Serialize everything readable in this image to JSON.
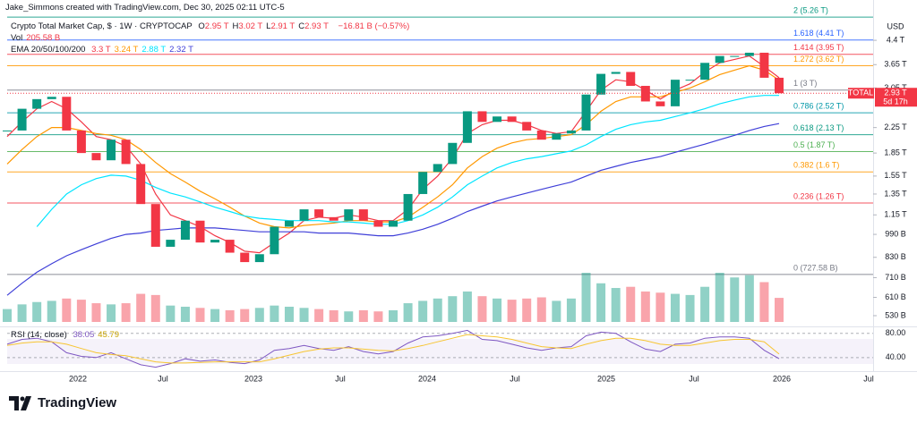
{
  "header": {
    "credit": "Jake_Simmons created with TradingView.com, Dec 30, 2025 02:11 UTC-5",
    "symbol": "Crypto Total Market Cap, $ · 1W · CRYPTOCAP",
    "ohlc": [
      {
        "key": "O",
        "value": "2.95 T"
      },
      {
        "key": "H",
        "value": "3.02 T"
      },
      {
        "key": "L",
        "value": "2.91 T"
      },
      {
        "key": "C",
        "value": "2.93 T"
      }
    ],
    "change": "−16.81 B (−0.57%)",
    "vol_label": "Vol",
    "vol_value": "205.58 B",
    "ema_label": "EMA 20/50/100/200",
    "ema_values": [
      "3.3 T",
      "3.24 T",
      "2.88 T",
      "2.32 T"
    ],
    "rsi_label": "RSI (14, close)",
    "rsi_values": [
      "38.05",
      "45.79"
    ]
  },
  "chart_data": {
    "type": "candlestick",
    "log_scale": true,
    "currency": "USD",
    "ylim": [
      0.505,
      5.6
    ],
    "yticks": [
      {
        "value": 4.4,
        "label": "4.4 T"
      },
      {
        "value": 3.65,
        "label": "3.65 T"
      },
      {
        "value": 3.05,
        "label": "3.05 T"
      },
      {
        "value": 2.25,
        "label": "2.25 T"
      },
      {
        "value": 1.85,
        "label": "1.85 T"
      },
      {
        "value": 1.55,
        "label": "1.55 T"
      },
      {
        "value": 1.35,
        "label": "1.35 T"
      },
      {
        "value": 1.15,
        "label": "1.15 T"
      },
      {
        "value": 0.99,
        "label": "990 B"
      },
      {
        "value": 0.83,
        "label": "830 B"
      },
      {
        "value": 0.71,
        "label": "710 B"
      },
      {
        "value": 0.61,
        "label": "610 B"
      },
      {
        "value": 0.53,
        "label": "530 B"
      }
    ],
    "xlabels": [
      "2022",
      "Jul",
      "2023",
      "Jul",
      "2024",
      "Jul",
      "2025",
      "Jul",
      "2026",
      "Jul"
    ],
    "up_color": "#089981",
    "down_color": "#f23645",
    "close": [
      2.2,
      2.6,
      2.8,
      2.85,
      2.2,
      1.85,
      1.75,
      2.05,
      1.7,
      1.25,
      0.9,
      0.95,
      1.1,
      0.93,
      0.95,
      0.86,
      0.8,
      0.85,
      1.05,
      1.1,
      1.2,
      1.13,
      1.1,
      1.2,
      1.1,
      1.05,
      1.1,
      1.35,
      1.6,
      1.7,
      2.0,
      2.55,
      2.35,
      2.45,
      2.35,
      2.2,
      2.05,
      2.15,
      2.2,
      2.9,
      3.4,
      3.45,
      3.1,
      2.75,
      2.65,
      3.25,
      3.25,
      3.7,
      3.9,
      3.9,
      4.0,
      3.3,
      2.93
    ],
    "volume": [
      110,
      150,
      170,
      180,
      200,
      190,
      160,
      150,
      160,
      240,
      230,
      140,
      130,
      120,
      110,
      100,
      110,
      120,
      140,
      130,
      120,
      110,
      100,
      90,
      100,
      90,
      100,
      160,
      180,
      200,
      220,
      260,
      220,
      200,
      190,
      200,
      210,
      180,
      200,
      420,
      330,
      290,
      300,
      260,
      250,
      240,
      230,
      300,
      420,
      380,
      400,
      340,
      205.58
    ],
    "series": [
      {
        "name": "EMA 20",
        "color": "#f23645",
        "values": [
          2.1,
          2.35,
          2.6,
          2.75,
          2.6,
          2.35,
          2.1,
          2.05,
          1.95,
          1.7,
          1.35,
          1.15,
          1.1,
          1.05,
          0.98,
          0.93,
          0.87,
          0.86,
          0.93,
          1.0,
          1.1,
          1.13,
          1.12,
          1.15,
          1.13,
          1.1,
          1.1,
          1.2,
          1.4,
          1.55,
          1.78,
          2.15,
          2.3,
          2.38,
          2.38,
          2.3,
          2.2,
          2.15,
          2.18,
          2.55,
          3.0,
          3.25,
          3.2,
          3.0,
          2.8,
          3.0,
          3.15,
          3.45,
          3.7,
          3.8,
          3.9,
          3.6,
          3.3
        ]
      },
      {
        "name": "EMA 50",
        "color": "#ff9800",
        "values": [
          1.7,
          1.9,
          2.1,
          2.25,
          2.25,
          2.2,
          2.15,
          2.12,
          2.05,
          1.9,
          1.72,
          1.58,
          1.48,
          1.38,
          1.3,
          1.22,
          1.14,
          1.08,
          1.05,
          1.04,
          1.06,
          1.07,
          1.08,
          1.1,
          1.1,
          1.09,
          1.09,
          1.13,
          1.22,
          1.32,
          1.45,
          1.65,
          1.8,
          1.92,
          2.0,
          2.05,
          2.07,
          2.1,
          2.13,
          2.3,
          2.55,
          2.75,
          2.85,
          2.85,
          2.85,
          2.95,
          3.05,
          3.2,
          3.38,
          3.5,
          3.62,
          3.5,
          3.24
        ]
      },
      {
        "name": "EMA 100",
        "color": "#00e5ff",
        "values": [
          null,
          null,
          1.05,
          1.2,
          1.35,
          1.45,
          1.52,
          1.56,
          1.55,
          1.5,
          1.42,
          1.36,
          1.32,
          1.27,
          1.22,
          1.18,
          1.14,
          1.12,
          1.11,
          1.1,
          1.1,
          1.1,
          1.09,
          1.09,
          1.08,
          1.07,
          1.07,
          1.1,
          1.15,
          1.22,
          1.32,
          1.45,
          1.55,
          1.65,
          1.72,
          1.77,
          1.8,
          1.84,
          1.88,
          1.97,
          2.1,
          2.22,
          2.3,
          2.35,
          2.38,
          2.45,
          2.52,
          2.6,
          2.7,
          2.78,
          2.85,
          2.88,
          2.88
        ]
      },
      {
        "name": "EMA 200",
        "color": "#3f3fd8",
        "values": [
          0.62,
          0.68,
          0.74,
          0.79,
          0.84,
          0.88,
          0.92,
          0.96,
          0.99,
          1.0,
          1.02,
          1.03,
          1.04,
          1.04,
          1.04,
          1.03,
          1.02,
          1.01,
          1.01,
          1.01,
          1.01,
          1.0,
          1.0,
          1.0,
          0.99,
          0.98,
          0.98,
          1.0,
          1.03,
          1.07,
          1.12,
          1.18,
          1.23,
          1.28,
          1.32,
          1.36,
          1.4,
          1.44,
          1.48,
          1.55,
          1.62,
          1.67,
          1.72,
          1.76,
          1.8,
          1.86,
          1.92,
          1.98,
          2.05,
          2.12,
          2.2,
          2.27,
          2.32
        ]
      }
    ],
    "fib_levels": [
      {
        "label": "2 (5.26 T)",
        "value": 5.26,
        "color": "#089981"
      },
      {
        "label": "1.618 (4.41 T)",
        "value": 4.41,
        "color": "#2962ff"
      },
      {
        "label": "1.414 (3.95 T)",
        "value": 3.95,
        "color": "#f23645"
      },
      {
        "label": "1.272 (3.62 T)",
        "value": 3.62,
        "color": "#ff9800"
      },
      {
        "label": "1 (3 T)",
        "value": 3,
        "color": "#787b86"
      },
      {
        "label": "0.786 (2.52 T)",
        "value": 2.52,
        "color": "#0097a7"
      },
      {
        "label": "0.618 (2.13 T)",
        "value": 2.13,
        "color": "#089981"
      },
      {
        "label": "0.5 (1.87 T)",
        "value": 1.87,
        "color": "#4caf50"
      },
      {
        "label": "0.382 (1.6 T)",
        "value": 1.6,
        "color": "#ff9800"
      },
      {
        "label": "0.236 (1.26 T)",
        "value": 1.26,
        "color": "#f23645"
      },
      {
        "label": "0 (727.58 B)",
        "value": 0.72758,
        "color": "#787b86"
      }
    ],
    "last_price": {
      "name": "TOTAL",
      "label": "2.93 T",
      "countdown": "5d 17h"
    },
    "rsi": {
      "ylim": [
        22,
        90
      ],
      "yticks": [
        {
          "value": 80,
          "label": "80.00"
        },
        {
          "value": 40,
          "label": "40.00"
        }
      ],
      "color": "#7e57c2",
      "ma_color": "#f7c531",
      "values": [
        62,
        70,
        72,
        66,
        48,
        42,
        40,
        48,
        38,
        28,
        24,
        30,
        38,
        34,
        36,
        32,
        30,
        36,
        52,
        55,
        60,
        55,
        52,
        58,
        50,
        46,
        50,
        64,
        74,
        76,
        80,
        85,
        70,
        68,
        62,
        56,
        52,
        56,
        58,
        76,
        82,
        80,
        66,
        54,
        50,
        62,
        64,
        72,
        74,
        74,
        72,
        52,
        38.05
      ],
      "ma": [
        60,
        64,
        66,
        66,
        62,
        55,
        48,
        45,
        43,
        38,
        33,
        31,
        31,
        32,
        33,
        33,
        33,
        33,
        38,
        44,
        50,
        54,
        56,
        56,
        54,
        52,
        51,
        55,
        60,
        66,
        72,
        78,
        76,
        74,
        70,
        64,
        58,
        56,
        55,
        62,
        68,
        72,
        72,
        68,
        62,
        60,
        60,
        64,
        68,
        70,
        70,
        66,
        45.79
      ]
    }
  }
}
